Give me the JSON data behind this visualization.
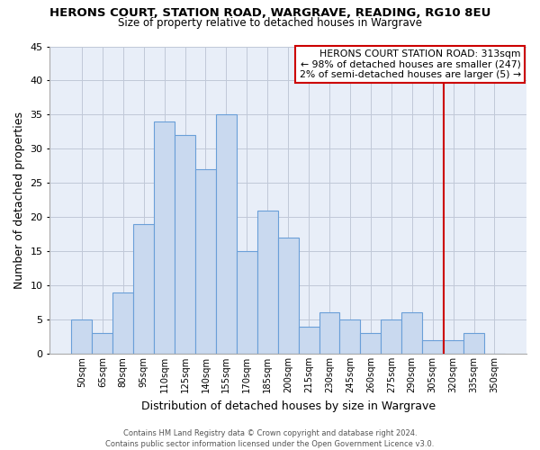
{
  "title": "HERONS COURT, STATION ROAD, WARGRAVE, READING, RG10 8EU",
  "subtitle": "Size of property relative to detached houses in Wargrave",
  "xlabel": "Distribution of detached houses by size in Wargrave",
  "ylabel": "Number of detached properties",
  "bar_labels": [
    "50sqm",
    "65sqm",
    "80sqm",
    "95sqm",
    "110sqm",
    "125sqm",
    "140sqm",
    "155sqm",
    "170sqm",
    "185sqm",
    "200sqm",
    "215sqm",
    "230sqm",
    "245sqm",
    "260sqm",
    "275sqm",
    "290sqm",
    "305sqm",
    "320sqm",
    "335sqm",
    "350sqm"
  ],
  "bar_values": [
    5,
    3,
    9,
    19,
    34,
    32,
    27,
    35,
    15,
    21,
    17,
    4,
    6,
    5,
    3,
    5,
    6,
    2,
    2,
    3,
    0
  ],
  "bar_color": "#c9d9ef",
  "bar_edge_color": "#6a9fd8",
  "ylim": [
    0,
    45
  ],
  "yticks": [
    0,
    5,
    10,
    15,
    20,
    25,
    30,
    35,
    40,
    45
  ],
  "marker_label": "HERONS COURT STATION ROAD: 313sqm",
  "annotation_line1": "← 98% of detached houses are smaller (247)",
  "annotation_line2": "2% of semi-detached houses are larger (5) →",
  "vline_color": "#cc0000",
  "annotation_box_edge": "#cc0000",
  "annotation_box_face": "#ffffff",
  "footer_line1": "Contains HM Land Registry data © Crown copyright and database right 2024.",
  "footer_line2": "Contains public sector information licensed under the Open Government Licence v3.0.",
  "background_color": "#ffffff",
  "plot_bg_color": "#e8eef8",
  "grid_color": "#c0c8d8"
}
